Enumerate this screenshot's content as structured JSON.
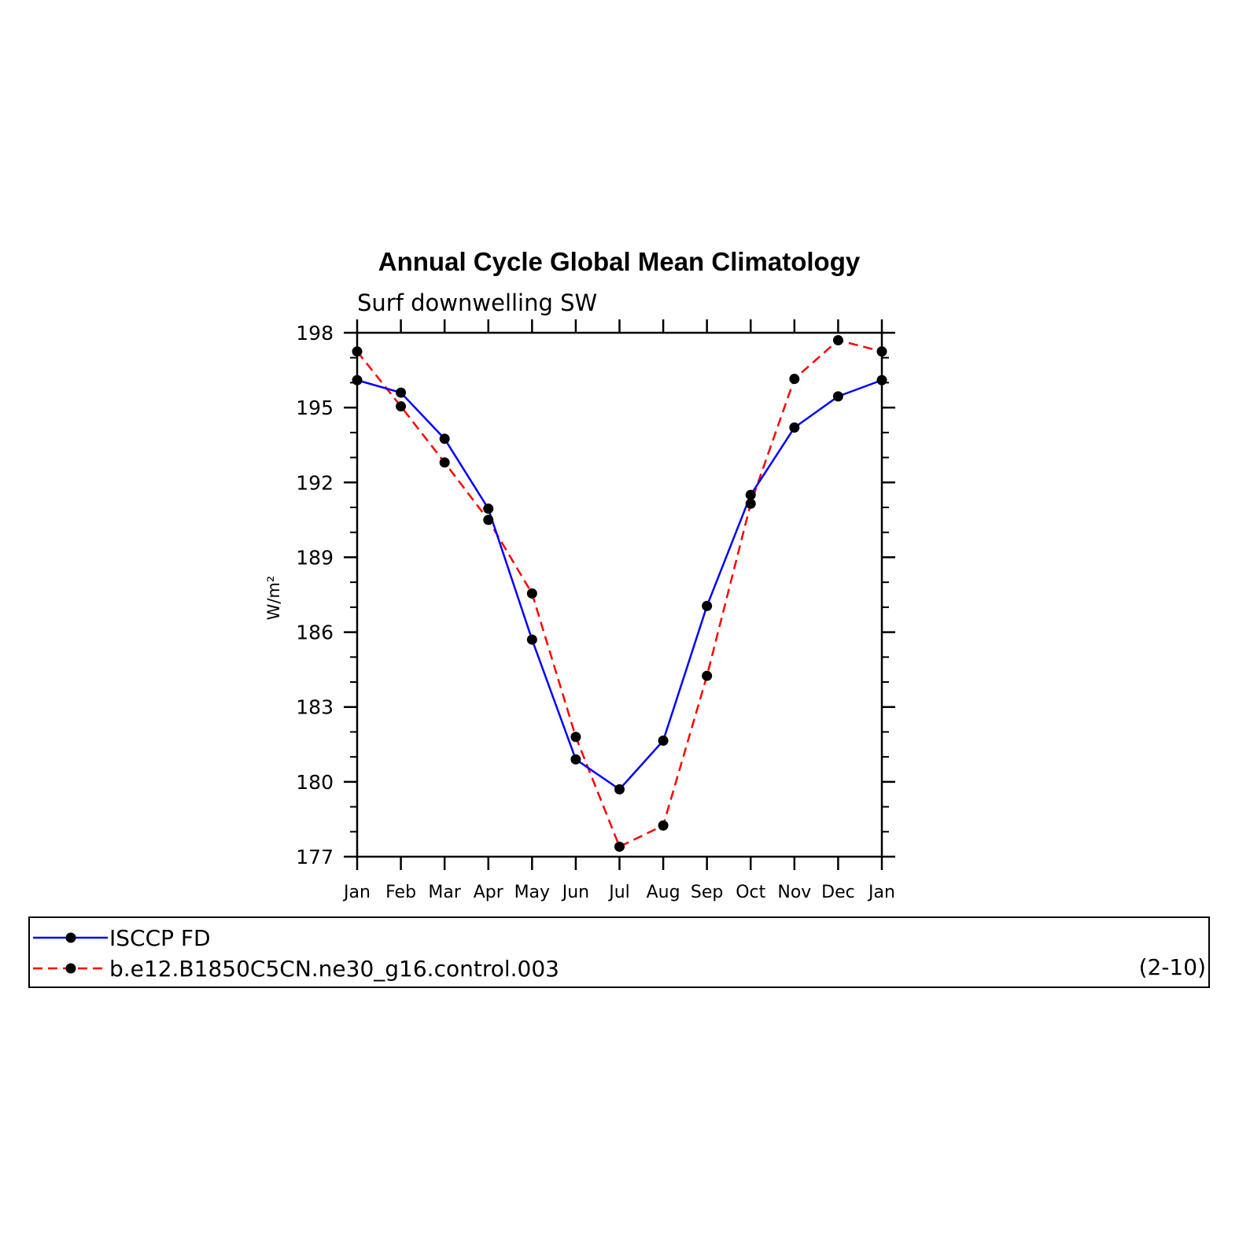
{
  "chart_data": {
    "type": "line",
    "title": "Annual Cycle Global Mean Climatology",
    "subtitle": "Surf downwelling SW",
    "xlabel": "",
    "ylabel": "W/m²",
    "categories": [
      "Jan",
      "Feb",
      "Mar",
      "Apr",
      "May",
      "Jun",
      "Jul",
      "Aug",
      "Sep",
      "Oct",
      "Nov",
      "Dec",
      "Jan"
    ],
    "ylim": [
      177,
      198
    ],
    "yticks": [
      177,
      180,
      183,
      186,
      189,
      192,
      195,
      198
    ],
    "series": [
      {
        "name": "ISCCP FD",
        "color": "#0000ff",
        "line_style": "solid",
        "values": [
          196.1,
          195.6,
          193.75,
          190.95,
          185.7,
          180.9,
          179.7,
          181.65,
          187.05,
          191.5,
          194.2,
          195.45,
          196.1
        ]
      },
      {
        "name": "b.e12.B1850C5CN.ne30_g16.control.003",
        "color": "#ff0000",
        "line_style": "dashed",
        "values": [
          197.25,
          195.05,
          192.8,
          190.5,
          187.55,
          181.8,
          177.4,
          178.25,
          184.25,
          191.15,
          196.15,
          197.7,
          197.25
        ]
      }
    ],
    "legend_position": "bottom",
    "legend_note": "(2-10)",
    "grid": false
  }
}
